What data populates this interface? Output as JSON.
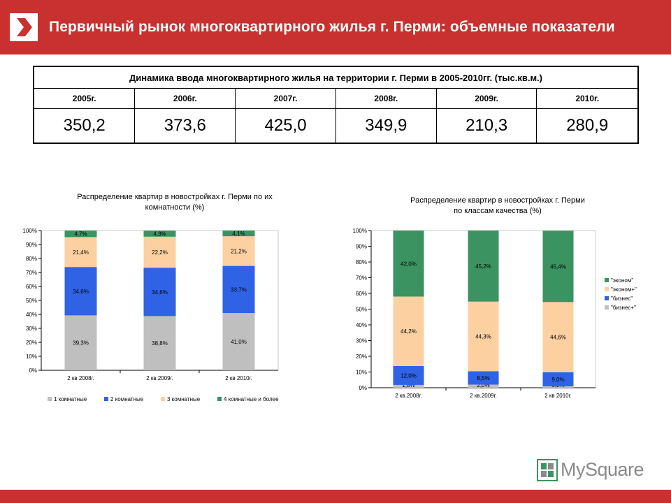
{
  "header": {
    "title": "Первичный рынок многоквартирного жилья г. Перми: объемные показатели"
  },
  "table": {
    "caption": "Динамика ввода многоквартирного жилья на территории г. Перми в 2005-2010гг. (тыс.кв.м.)",
    "years": [
      "2005г.",
      "2006г.",
      "2007г.",
      "2008г.",
      "2009г.",
      "2010г."
    ],
    "values": [
      "350,2",
      "373,6",
      "425,0",
      "349,9",
      "210,3",
      "280,9"
    ]
  },
  "chart_data": [
    {
      "type": "bar",
      "stacked": true,
      "title": [
        "Распределение квартир в новостройках г. Перми по их",
        "комнатности (%)"
      ],
      "categories": [
        "2 кв 2008г.",
        "2 кв.2009г.",
        "2 кв 2010г."
      ],
      "ylim": [
        0,
        100
      ],
      "yticks": [
        "0%",
        "10%",
        "20%",
        "30%",
        "40%",
        "50%",
        "60%",
        "70%",
        "80%",
        "90%",
        "100%"
      ],
      "legend_position": "bottom",
      "series": [
        {
          "name": "1 комнатные",
          "color": "#bfbfbf",
          "values": [
            39.3,
            38.8,
            41.0
          ],
          "labels": [
            "39,3%",
            "38,8%",
            "41,0%"
          ]
        },
        {
          "name": "2 комнатные",
          "color": "#2f62e4",
          "values": [
            34.6,
            34.6,
            33.7
          ],
          "labels": [
            "34,6%",
            "34,6%",
            "33,7%"
          ]
        },
        {
          "name": "3 комнатные",
          "color": "#fcd0a1",
          "values": [
            21.4,
            22.2,
            21.2
          ],
          "labels": [
            "21,4%",
            "22,2%",
            "21,2%"
          ]
        },
        {
          "name": "4 комнатные и более",
          "color": "#3b9362",
          "values": [
            4.7,
            4.3,
            4.1
          ],
          "labels": [
            "4,7%",
            "4,3%",
            "4,1%"
          ]
        }
      ]
    },
    {
      "type": "bar",
      "stacked": true,
      "title": [
        "Распределение квартир в новостройках г. Перми",
        "по классам качества (%)"
      ],
      "categories": [
        "2 кв.2008г.",
        "2 кв.2009г.",
        "2 кв 2010г."
      ],
      "ylim": [
        0,
        100
      ],
      "yticks": [
        "0%",
        "10%",
        "20%",
        "30%",
        "40%",
        "50%",
        "60%",
        "70%",
        "80%",
        "90%",
        "100%"
      ],
      "legend_position": "right",
      "series": [
        {
          "name": "\"бизнес+\"",
          "color": "#bfbfbf",
          "values": [
            1.8,
            2.0,
            0.9
          ],
          "labels": [
            "1,8%",
            "2,0%",
            "0,9%"
          ]
        },
        {
          "name": "\"бизнес\"",
          "color": "#2f62e4",
          "values": [
            12.0,
            8.5,
            9.0
          ],
          "labels": [
            "12,0%",
            "8,5%",
            "9,0%"
          ]
        },
        {
          "name": "\"эконом+\"",
          "color": "#fcd0a1",
          "values": [
            44.2,
            44.3,
            44.6
          ],
          "labels": [
            "44,2%",
            "44,3%",
            "44,6%"
          ]
        },
        {
          "name": "\"эконом\"",
          "color": "#3b9362",
          "values": [
            42.0,
            45.2,
            45.4
          ],
          "labels": [
            "42,0%",
            "45,2%",
            "45,4%"
          ]
        }
      ]
    }
  ],
  "brand": {
    "name": "MySquare",
    "mark": "MS",
    "accent": "#3b9362"
  }
}
